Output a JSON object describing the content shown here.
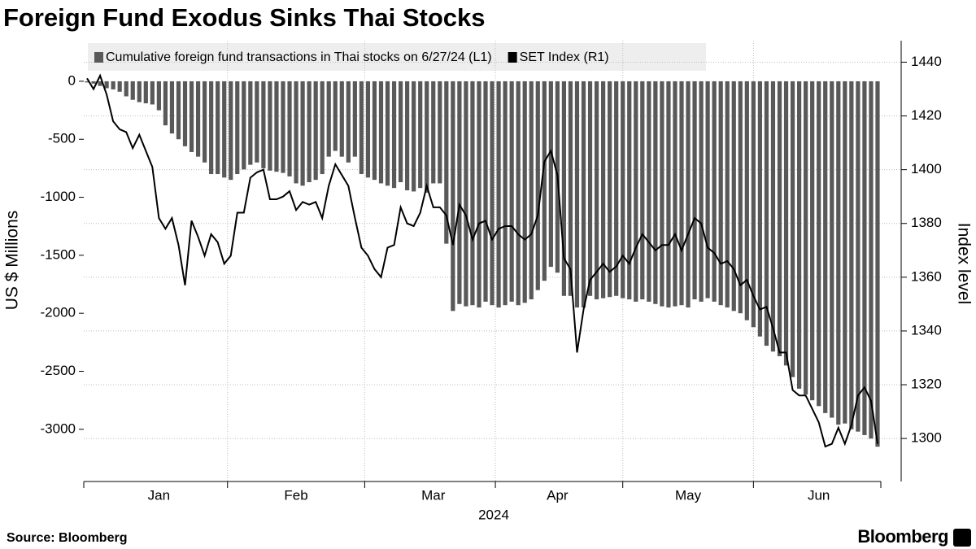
{
  "chart_data": {
    "type": "bar",
    "title": "Foreign Fund Exodus Sinks Thai Stocks",
    "ylabel": "US $ Millions",
    "y2label": "Index level",
    "xlabel": "2024",
    "source": "Source: Bloomberg",
    "brand": "Bloomberg",
    "categories": [
      null,
      null,
      null,
      null,
      null,
      null,
      null,
      null,
      null,
      null,
      null,
      "Jan",
      null,
      null,
      null,
      null,
      null,
      null,
      null,
      null,
      null,
      null,
      null,
      null,
      null,
      null,
      null,
      null,
      null,
      null,
      null,
      null,
      "Feb",
      null,
      null,
      null,
      null,
      null,
      null,
      null,
      null,
      null,
      null,
      null,
      null,
      null,
      null,
      null,
      null,
      null,
      null,
      null,
      null,
      "Mar",
      null,
      null,
      null,
      null,
      null,
      null,
      null,
      null,
      null,
      null,
      null,
      null,
      null,
      null,
      null,
      null,
      null,
      null,
      "Apr",
      null,
      null,
      null,
      null,
      null,
      null,
      null,
      null,
      null,
      null,
      null,
      null,
      null,
      null,
      null,
      null,
      null,
      null,
      null,
      "May",
      null,
      null,
      null,
      null,
      null,
      null,
      null,
      null,
      null,
      null,
      null,
      null,
      null,
      null,
      null,
      null,
      null,
      null,
      null,
      "Jun",
      null,
      null,
      null,
      null,
      null,
      null,
      null,
      null,
      null
    ],
    "series": [
      {
        "name": "Cumulative foreign fund transactions in Thai stocks on 6/27/24 (L1)",
        "type": "bar",
        "color": "#595959",
        "values": [
          -10,
          -20,
          -40,
          -60,
          -70,
          -90,
          -130,
          -160,
          -180,
          -190,
          -200,
          -250,
          -380,
          -450,
          -500,
          -560,
          -610,
          -650,
          -700,
          -800,
          -800,
          -830,
          -850,
          -800,
          -760,
          -720,
          -700,
          -750,
          -770,
          -780,
          -790,
          -820,
          -880,
          -900,
          -870,
          -850,
          -800,
          -650,
          -600,
          -650,
          -700,
          -650,
          -800,
          -830,
          -850,
          -880,
          -900,
          -920,
          -870,
          -940,
          -950,
          -920,
          -960,
          -880,
          -880,
          -1400,
          -1980,
          -1920,
          -1940,
          -1930,
          -1950,
          -1900,
          -1930,
          -1950,
          -1930,
          -1900,
          -1930,
          -1910,
          -1880,
          -1800,
          -1720,
          -1600,
          -1650,
          -1850,
          -1850,
          -1950,
          -1950,
          -1850,
          -1880,
          -1870,
          -1860,
          -1850,
          -1870,
          -1880,
          -1900,
          -1880,
          -1900,
          -1920,
          -1940,
          -1950,
          -1940,
          -1930,
          -1950,
          -1880,
          -1900,
          -1870,
          -1900,
          -1930,
          -1950,
          -1980,
          -2000,
          -2060,
          -2120,
          -2200,
          -2280,
          -2330,
          -2370,
          -2450,
          -2550,
          -2650,
          -2700,
          -2750,
          -2800,
          -2860,
          -2900,
          -2960,
          -2950,
          -3000,
          -3020,
          -3050,
          -3080,
          -3150
        ]
      },
      {
        "name": "SET Index (R1)",
        "type": "line",
        "axis": "y2",
        "color": "#000000",
        "values": [
          1434,
          1430,
          1435,
          1428,
          1418,
          1415,
          1414,
          1408,
          1413,
          1407,
          1401,
          1382,
          1378,
          1382,
          1372,
          1357,
          1381,
          1375,
          1368,
          1376,
          1373,
          1365,
          1368,
          1384,
          1384,
          1397,
          1399,
          1400,
          1389,
          1389,
          1390,
          1392,
          1385,
          1388,
          1387,
          1388,
          1382,
          1394,
          1402,
          1398,
          1394,
          1382,
          1371,
          1368,
          1363,
          1360,
          1371,
          1372,
          1386,
          1380,
          1379,
          1384,
          1394,
          1386,
          1386,
          1383,
          1372,
          1387,
          1383,
          1374,
          1380,
          1381,
          1374,
          1378,
          1379,
          1379,
          1376,
          1374,
          1376,
          1383,
          1403,
          1407,
          1398,
          1367,
          1363,
          1332,
          1348,
          1359,
          1362,
          1365,
          1362,
          1364,
          1368,
          1365,
          1371,
          1376,
          1373,
          1370,
          1372,
          1372,
          1376,
          1370,
          1376,
          1382,
          1380,
          1371,
          1369,
          1365,
          1366,
          1363,
          1357,
          1359,
          1353,
          1348,
          1349,
          1341,
          1332,
          1332,
          1318,
          1316,
          1316,
          1311,
          1306,
          1297,
          1298,
          1304,
          1298,
          1305,
          1316,
          1319,
          1314,
          1298
        ]
      }
    ],
    "ylim": [
      -3450,
      350
    ],
    "yticks": [
      0,
      -500,
      -1000,
      -1500,
      -2000,
      -2500,
      -3000
    ],
    "y2lim": [
      1284,
      1448
    ],
    "y2ticks": [
      1300,
      1320,
      1340,
      1360,
      1380,
      1400,
      1420,
      1440
    ],
    "grid": true
  }
}
